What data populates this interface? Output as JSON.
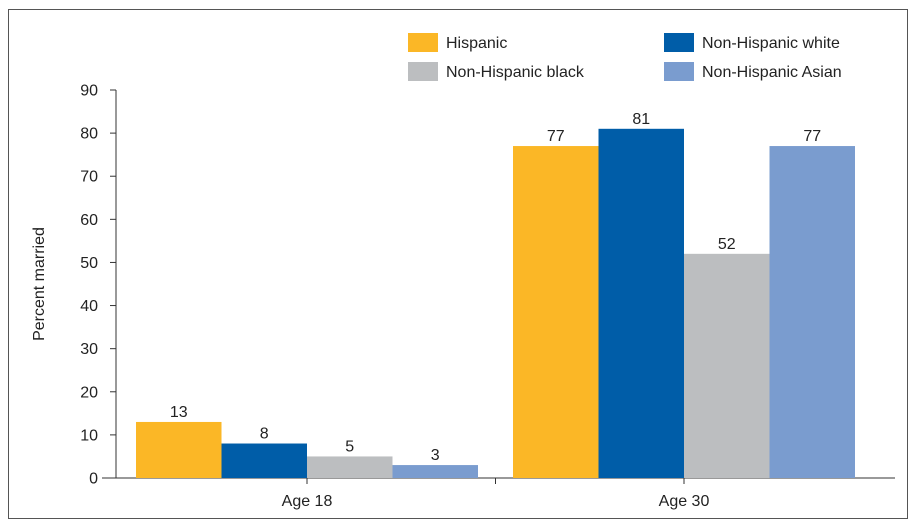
{
  "chart_data": {
    "type": "bar",
    "categories": [
      "Age 18",
      "Age 30"
    ],
    "series": [
      {
        "name": "Hispanic",
        "color": "#FBB726",
        "values": [
          13,
          77
        ]
      },
      {
        "name": "Non-Hispanic white",
        "color": "#005DA8",
        "values": [
          8,
          81
        ]
      },
      {
        "name": "Non-Hispanic black",
        "color": "#BCBEC0",
        "values": [
          5,
          52
        ]
      },
      {
        "name": "Non-Hispanic Asian",
        "color": "#7A9CCF",
        "values": [
          3,
          77
        ]
      }
    ],
    "ylabel": "Percent married",
    "xlabel": "",
    "ylim": [
      0,
      90
    ],
    "yticks": [
      0,
      10,
      20,
      30,
      40,
      50,
      60,
      70,
      80,
      90
    ],
    "grid": false,
    "legend_position": "top-right",
    "data_labels": true
  }
}
